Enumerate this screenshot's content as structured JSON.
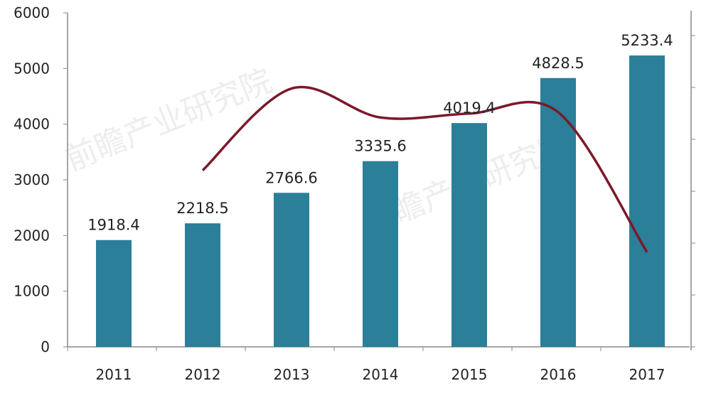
{
  "chart_data": {
    "type": "bar",
    "title": "",
    "xlabel": "",
    "ylabel": "",
    "categories": [
      "2011",
      "2012",
      "2013",
      "2014",
      "2015",
      "2016",
      "2017"
    ],
    "ylim": [
      0,
      6000
    ],
    "yticks": [
      0,
      1000,
      2000,
      3000,
      4000,
      5000,
      6000
    ],
    "grid": false,
    "legend": "none",
    "series": [
      {
        "type": "bar",
        "values": [
          1918.4,
          2218.5,
          2766.6,
          3335.6,
          4019.4,
          4828.5,
          5233.4
        ],
        "labels": [
          "1918.4",
          "2218.5",
          "2766.6",
          "3335.6",
          "4019.4",
          "4828.5",
          "5233.4"
        ],
        "color": "#2b7f99"
      },
      {
        "type": "line",
        "axis": "right (unlabeled)",
        "smooth": true,
        "categories": [
          "2012",
          "2013",
          "2014",
          "2015",
          "2016",
          "2017"
        ],
        "values_in_left_axis_scale": [
          3170,
          4640,
          4120,
          4190,
          4215,
          1700
        ],
        "color": "#7a1a2b"
      }
    ],
    "right_axis": {
      "tick_labels_visible": false
    },
    "watermark": "前瞻产业研究院"
  }
}
